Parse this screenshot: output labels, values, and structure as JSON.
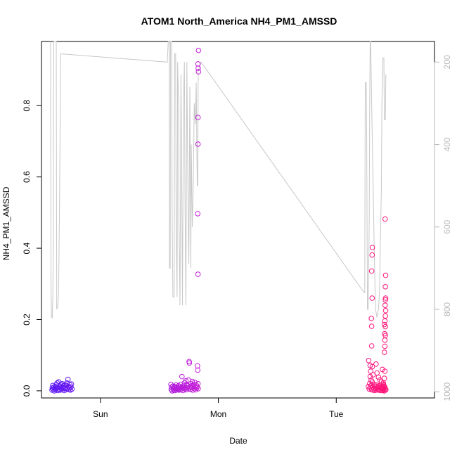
{
  "chart_data": {
    "type": "scatter",
    "title": "ATOM1 North_America NH4_PM1_AMSSD",
    "xlabel": "Date",
    "ylabel": "NH4_PM1_AMSSD",
    "x_tick_labels": [
      "Sun",
      "Mon",
      "Tue"
    ],
    "y_ticks": [
      0.0,
      0.2,
      0.4,
      0.6,
      0.8
    ],
    "y_tick_labels": [
      "0.0",
      "0.2",
      "0.4",
      "0.6",
      "0.8"
    ],
    "y_range": [
      -0.02,
      0.98
    ],
    "secondary_axis": {
      "side": "right",
      "reversed": true,
      "range": [
        1015,
        150
      ],
      "ticks": [
        200,
        400,
        600,
        800,
        1000
      ],
      "tick_labels": [
        "200",
        "400",
        "600",
        "800",
        "1000"
      ]
    },
    "grid": false,
    "legend": "none",
    "point_color_scale": [
      "#5a17f5",
      "#d21cd2",
      "#ff1478"
    ],
    "line_color": "#c8c8c8",
    "x_range_hours": [
      -19,
      61
    ],
    "series": [
      {
        "points": [
          [
            -16.85,
            0.002
          ],
          [
            -16.8,
            0.008
          ],
          [
            -16.7,
            0.015
          ],
          [
            -16.6,
            0.004
          ],
          [
            -16.5,
            0.01
          ],
          [
            -16.4,
            0.0
          ],
          [
            -16.3,
            0.006
          ],
          [
            -16.2,
            0.012
          ],
          [
            -16.1,
            0.003
          ],
          [
            -16.0,
            0.018
          ],
          [
            -15.9,
            0.007
          ],
          [
            -15.8,
            0.022
          ],
          [
            -15.7,
            0.001
          ],
          [
            -15.6,
            0.009
          ],
          [
            -15.5,
            0.025
          ],
          [
            -15.4,
            0.005
          ],
          [
            -15.3,
            0.013
          ],
          [
            -15.2,
            0.002
          ],
          [
            -15.1,
            0.016
          ],
          [
            -15.0,
            0.008
          ],
          [
            -14.9,
            0.004
          ],
          [
            -14.8,
            0.02
          ],
          [
            -14.7,
            0.011
          ],
          [
            -14.6,
            0.006
          ],
          [
            -14.5,
            0.014
          ],
          [
            -14.4,
            0.001
          ],
          [
            -14.3,
            0.018
          ],
          [
            -14.2,
            0.007
          ],
          [
            -14.1,
            0.01
          ],
          [
            -14.0,
            0.003
          ],
          [
            -13.9,
            0.015
          ],
          [
            -13.8,
            0.022
          ],
          [
            -13.7,
            0.006
          ],
          [
            -13.6,
            0.032
          ],
          [
            -13.5,
            0.012
          ],
          [
            -13.4,
            0.004
          ],
          [
            -13.3,
            0.009
          ],
          [
            -13.2,
            0.017
          ],
          [
            -13.1,
            0.002
          ],
          [
            -13.0,
            0.011
          ],
          [
            -12.9,
            0.019
          ],
          [
            -12.8,
            0.005
          ],
          [
            7.35,
            0.018
          ],
          [
            7.4,
            0.004
          ],
          [
            7.5,
            0.01
          ],
          [
            7.6,
            0.0
          ],
          [
            7.7,
            0.013
          ],
          [
            7.8,
            0.006
          ],
          [
            7.9,
            0.002
          ],
          [
            8.0,
            0.009
          ],
          [
            8.1,
            0.012
          ],
          [
            8.2,
            0.001
          ],
          [
            8.3,
            0.007
          ],
          [
            8.4,
            0.016
          ],
          [
            8.5,
            0.004
          ],
          [
            8.6,
            0.01
          ],
          [
            8.7,
            0.003
          ],
          [
            8.8,
            0.008
          ],
          [
            8.9,
            0.014
          ],
          [
            9.0,
            0.002
          ],
          [
            9.1,
            0.006
          ],
          [
            9.2,
            0.011
          ],
          [
            9.3,
            0.018
          ],
          [
            9.4,
            0.004
          ],
          [
            9.5,
            0.009
          ],
          [
            9.6,
            0.04
          ],
          [
            9.7,
            0.012
          ],
          [
            9.8,
            0.001
          ],
          [
            9.9,
            0.007
          ],
          [
            10.0,
            0.015
          ],
          [
            10.1,
            0.022
          ],
          [
            10.2,
            0.005
          ],
          [
            10.3,
            0.01
          ],
          [
            10.4,
            0.028
          ],
          [
            10.5,
            0.003
          ],
          [
            10.6,
            0.018
          ],
          [
            10.7,
            0.008
          ],
          [
            10.8,
            0.014
          ],
          [
            10.9,
            0.03
          ],
          [
            11.0,
            0.006
          ],
          [
            11.05,
            0.082
          ],
          [
            11.1,
            0.078
          ],
          [
            11.2,
            0.012
          ],
          [
            11.3,
            0.004
          ],
          [
            11.4,
            0.02
          ],
          [
            11.5,
            0.009
          ],
          [
            11.6,
            0.015
          ],
          [
            11.7,
            0.026
          ],
          [
            11.8,
            0.002
          ],
          [
            11.9,
            0.011
          ],
          [
            12.0,
            0.018
          ],
          [
            12.1,
            0.006
          ],
          [
            12.2,
            0.024
          ],
          [
            12.3,
            0.01
          ],
          [
            12.4,
            0.003
          ],
          [
            12.5,
            0.016
          ],
          [
            12.6,
            0.008
          ],
          [
            12.7,
            0.012
          ],
          [
            12.75,
            0.07
          ],
          [
            12.8,
            0.058
          ],
          [
            12.85,
            0.02
          ],
          [
            12.9,
            0.006
          ],
          [
            12.95,
            0.955
          ],
          [
            12.85,
            0.917
          ],
          [
            12.9,
            0.905
          ],
          [
            12.95,
            0.895
          ],
          [
            12.85,
            0.767
          ],
          [
            12.85,
            0.692
          ],
          [
            12.8,
            0.497
          ],
          [
            12.85,
            0.327
          ],
          [
            47.55,
            0.012
          ],
          [
            47.6,
            0.085
          ],
          [
            47.7,
            0.005
          ],
          [
            47.8,
            0.02
          ],
          [
            47.9,
            0.04
          ],
          [
            48.0,
            0.008
          ],
          [
            48.1,
            0.015
          ],
          [
            48.2,
            0.003
          ],
          [
            48.3,
            0.025
          ],
          [
            48.4,
            0.01
          ],
          [
            48.5,
            0.002
          ],
          [
            48.6,
            0.006
          ],
          [
            48.7,
            0.018
          ],
          [
            48.8,
            0.001
          ],
          [
            48.9,
            0.012
          ],
          [
            49.0,
            0.007
          ],
          [
            49.1,
            0.004
          ],
          [
            49.2,
            0.016
          ],
          [
            49.3,
            0.009
          ],
          [
            49.4,
            0.002
          ],
          [
            49.5,
            0.011
          ],
          [
            49.6,
            0.005
          ],
          [
            49.7,
            0.014
          ],
          [
            49.8,
            0.003
          ],
          [
            49.9,
            0.008
          ],
          [
            50.0,
            0.001
          ],
          [
            50.1,
            0.013
          ],
          [
            50.2,
            0.006
          ],
          [
            50.3,
            0.01
          ],
          [
            50.4,
            0.002
          ],
          [
            50.5,
            0.007
          ],
          [
            50.6,
            0.004
          ],
          [
            50.7,
            0.012
          ],
          [
            50.8,
            0.0
          ],
          [
            50.9,
            0.009
          ],
          [
            51.0,
            0.005
          ],
          [
            51.1,
            0.003
          ],
          [
            47.9,
            0.071
          ],
          [
            48.0,
            0.055
          ],
          [
            48.1,
            0.03
          ],
          [
            48.15,
            0.203
          ],
          [
            48.2,
            0.181
          ],
          [
            48.2,
            0.126
          ],
          [
            48.35,
            0.068
          ],
          [
            48.5,
            0.045
          ],
          [
            48.3,
            0.26
          ],
          [
            48.2,
            0.336
          ],
          [
            48.3,
            0.381
          ],
          [
            48.35,
            0.402
          ],
          [
            49.1,
            0.075
          ],
          [
            49.3,
            0.05
          ],
          [
            49.6,
            0.038
          ],
          [
            49.9,
            0.03
          ],
          [
            50.2,
            0.025
          ],
          [
            50.4,
            0.06
          ],
          [
            50.6,
            0.018
          ],
          [
            50.7,
            0.015
          ],
          [
            50.8,
            0.108
          ],
          [
            50.9,
            0.125
          ],
          [
            50.85,
            0.16
          ],
          [
            50.8,
            0.186
          ],
          [
            50.9,
            0.196
          ],
          [
            51.0,
            0.21
          ],
          [
            51.05,
            0.225
          ],
          [
            50.95,
            0.24
          ],
          [
            51.0,
            0.255
          ],
          [
            51.05,
            0.26
          ],
          [
            51.0,
            0.292
          ],
          [
            51.05,
            0.324
          ],
          [
            50.95,
            0.482
          ],
          [
            50.9,
            0.055
          ],
          [
            50.8,
            0.035
          ],
          [
            51.0,
            0.18
          ],
          [
            50.9,
            0.142
          ],
          [
            51.0,
            0.155
          ],
          [
            50.8,
            0.012
          ],
          [
            50.7,
            0.006
          ],
          [
            50.6,
            0.022
          ],
          [
            50.5,
            0.001
          ],
          [
            50.4,
            0.009
          ]
        ]
      }
    ],
    "pressure_line": [
      [
        -17.15,
        150
      ],
      [
        -17.1,
        540
      ],
      [
        -17.05,
        760
      ],
      [
        -17.0,
        790
      ],
      [
        -16.95,
        820
      ],
      [
        -16.8,
        820
      ],
      [
        -16.7,
        770
      ],
      [
        -16.6,
        650
      ],
      [
        -16.55,
        300
      ],
      [
        -16.5,
        150
      ],
      [
        -16.45,
        150
      ],
      [
        -16.3,
        150
      ],
      [
        -16.2,
        150
      ],
      [
        -16.0,
        150
      ],
      [
        -15.9,
        800
      ],
      [
        -15.7,
        790
      ],
      [
        -15.6,
        780
      ],
      [
        -15.5,
        740
      ],
      [
        -15.3,
        500
      ],
      [
        -15.1,
        180
      ],
      [
        -15.0,
        180
      ],
      [
        6.6,
        200
      ],
      [
        6.8,
        150
      ],
      [
        7.0,
        150
      ],
      [
        7.05,
        700
      ],
      [
        7.2,
        700
      ],
      [
        7.25,
        150
      ],
      [
        7.5,
        150
      ],
      [
        7.6,
        580
      ],
      [
        7.75,
        770
      ],
      [
        8.0,
        770
      ],
      [
        8.1,
        180
      ],
      [
        8.3,
        180
      ],
      [
        8.4,
        580
      ],
      [
        8.6,
        770
      ],
      [
        8.7,
        200
      ],
      [
        8.9,
        300
      ],
      [
        9.0,
        580
      ],
      [
        9.2,
        790
      ],
      [
        9.4,
        230
      ],
      [
        9.55,
        500
      ],
      [
        9.7,
        790
      ],
      [
        9.9,
        300
      ],
      [
        10.1,
        200
      ],
      [
        10.2,
        500
      ],
      [
        10.4,
        790
      ],
      [
        10.6,
        200
      ],
      [
        10.8,
        500
      ],
      [
        11.0,
        690
      ],
      [
        11.2,
        260
      ],
      [
        11.4,
        700
      ],
      [
        11.5,
        400
      ],
      [
        11.7,
        600
      ],
      [
        11.9,
        500
      ],
      [
        12.1,
        300
      ],
      [
        12.3,
        350
      ],
      [
        12.5,
        250
      ],
      [
        12.7,
        500
      ],
      [
        12.8,
        500
      ],
      [
        12.9,
        220
      ],
      [
        13.5,
        200
      ],
      [
        46.7,
        760
      ],
      [
        46.8,
        760
      ],
      [
        46.9,
        250
      ],
      [
        47.1,
        250
      ],
      [
        47.2,
        400
      ],
      [
        47.35,
        800
      ],
      [
        47.5,
        800
      ],
      [
        47.6,
        700
      ],
      [
        47.7,
        600
      ],
      [
        47.8,
        300
      ],
      [
        47.9,
        150
      ],
      [
        48.0,
        150
      ],
      [
        48.2,
        300
      ],
      [
        48.5,
        500
      ],
      [
        48.8,
        700
      ],
      [
        49.0,
        800
      ],
      [
        49.3,
        820
      ],
      [
        49.6,
        800
      ],
      [
        49.8,
        760
      ],
      [
        50.2,
        500
      ],
      [
        50.3,
        300
      ],
      [
        50.5,
        190
      ],
      [
        50.7,
        190
      ],
      [
        50.8,
        340
      ],
      [
        51.0,
        340
      ],
      [
        51.1,
        230
      ]
    ]
  }
}
